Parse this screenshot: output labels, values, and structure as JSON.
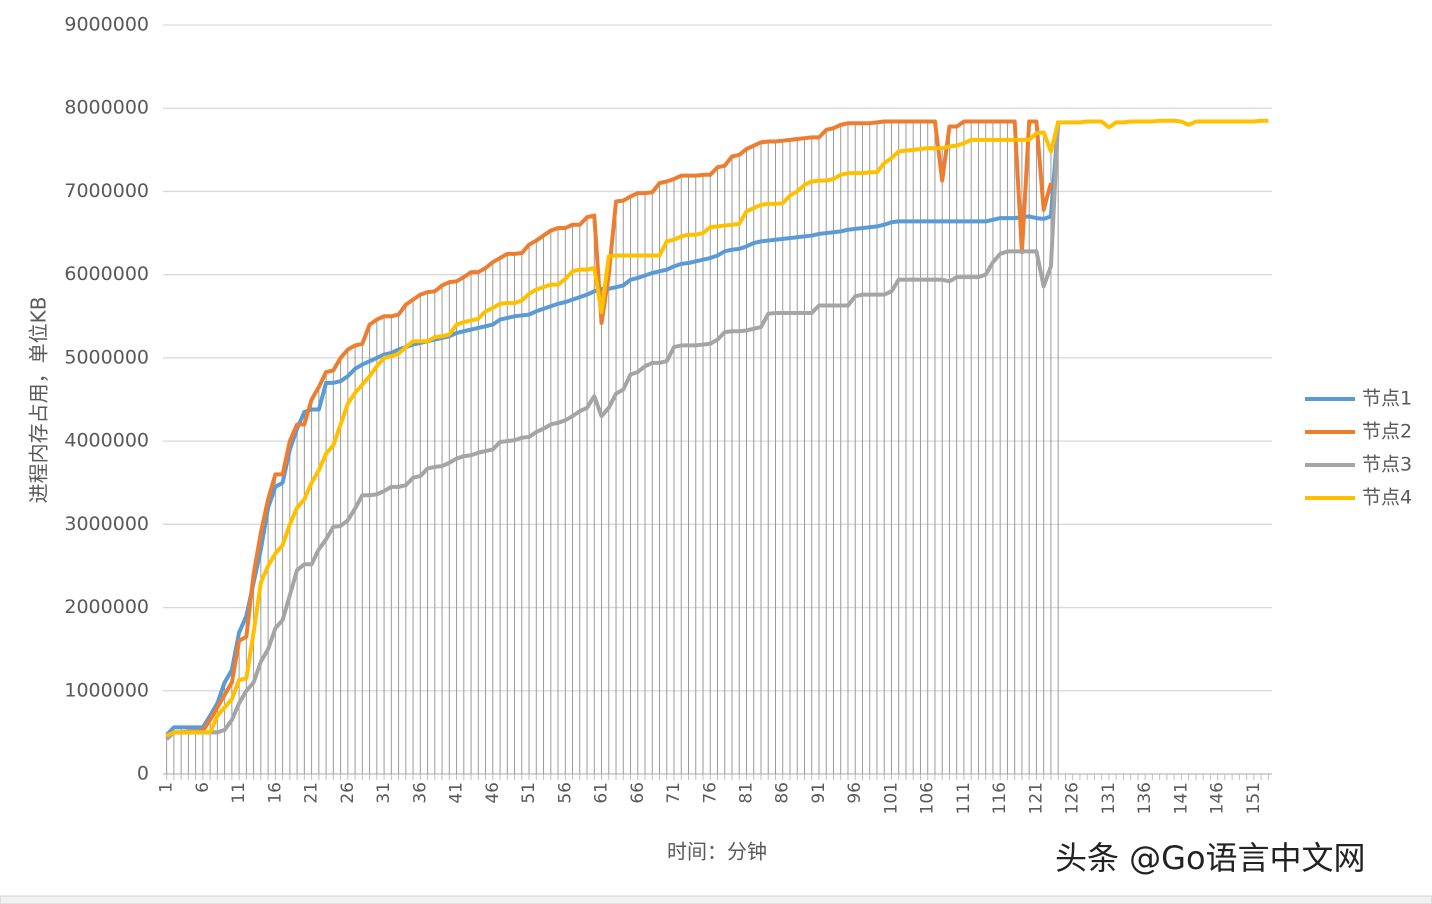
{
  "chart_data": {
    "type": "line",
    "y_label": "进程内存占用，单位KB",
    "x_label": "时间：分钟",
    "watermark": "头条 @Go语言中文网",
    "grid": true,
    "drop_lines": true,
    "legend": "right",
    "ylim": [
      0,
      9000000
    ],
    "yticks": [
      0,
      1000000,
      2000000,
      3000000,
      4000000,
      5000000,
      6000000,
      7000000,
      8000000,
      9000000
    ],
    "categories": [
      1,
      null,
      null,
      null,
      null,
      6,
      null,
      null,
      null,
      null,
      11,
      null,
      null,
      null,
      null,
      16,
      null,
      null,
      null,
      null,
      21,
      null,
      null,
      null,
      null,
      26,
      null,
      null,
      null,
      null,
      31,
      null,
      null,
      null,
      null,
      36,
      null,
      null,
      null,
      null,
      41,
      null,
      null,
      null,
      null,
      46,
      null,
      null,
      null,
      null,
      51,
      null,
      null,
      null,
      null,
      56,
      null,
      null,
      null,
      null,
      61,
      null,
      null,
      null,
      null,
      66,
      null,
      null,
      null,
      null,
      71,
      null,
      null,
      null,
      null,
      76,
      null,
      null,
      null,
      null,
      81,
      null,
      null,
      null,
      null,
      86,
      null,
      null,
      null,
      null,
      91,
      null,
      null,
      null,
      null,
      96,
      null,
      null,
      null,
      null,
      101,
      null,
      null,
      null,
      null,
      106,
      null,
      null,
      null,
      null,
      111,
      null,
      null,
      null,
      null,
      116,
      null,
      null,
      null,
      null,
      121,
      null,
      null,
      null,
      null,
      126,
      null,
      null,
      null,
      null,
      131,
      null,
      null,
      null,
      null,
      136,
      null,
      null,
      null,
      null,
      141,
      null,
      null,
      null,
      null,
      146,
      null,
      null,
      null,
      null,
      151,
      null,
      null
    ],
    "series": [
      {
        "name": "节点1",
        "color": "#5b9bd5",
        "values": [
          470000,
          560000,
          560000,
          560000,
          560000,
          560000,
          700000,
          850000,
          1100000,
          1250000,
          1700000,
          1900000,
          2300000,
          2700000,
          3200000,
          3450000,
          3500000,
          3900000,
          4150000,
          4350000,
          4380000,
          4380000,
          4700000,
          4700000,
          4720000,
          4780000,
          4870000,
          4920000,
          4960000,
          5000000,
          5040000,
          5060000,
          5100000,
          5130000,
          5160000,
          5180000,
          5200000,
          5220000,
          5240000,
          5260000,
          5300000,
          5320000,
          5340000,
          5360000,
          5380000,
          5400000,
          5460000,
          5480000,
          5500000,
          5510000,
          5520000,
          5560000,
          5590000,
          5620000,
          5650000,
          5670000,
          5700000,
          5730000,
          5760000,
          5800000,
          5830000,
          5830000,
          5850000,
          5870000,
          5940000,
          5960000,
          5990000,
          6020000,
          6040000,
          6060000,
          6100000,
          6130000,
          6140000,
          6160000,
          6180000,
          6200000,
          6230000,
          6280000,
          6300000,
          6310000,
          6340000,
          6380000,
          6400000,
          6410000,
          6420000,
          6430000,
          6440000,
          6450000,
          6460000,
          6470000,
          6490000,
          6500000,
          6510000,
          6520000,
          6540000,
          6550000,
          6560000,
          6570000,
          6580000,
          6600000,
          6630000,
          6640000,
          6640000,
          6640000,
          6640000,
          6640000,
          6640000,
          6640000,
          6640000,
          6640000,
          6640000,
          6640000,
          6640000,
          6640000,
          6660000,
          6680000,
          6680000,
          6680000,
          6690000,
          6700000,
          6680000,
          6670000,
          6700000,
          7830000,
          null,
          null,
          null,
          null,
          null,
          null,
          null,
          null,
          null,
          null,
          null,
          null,
          null,
          null,
          null,
          null,
          null,
          null,
          null,
          null,
          null,
          null,
          null,
          null,
          null,
          null,
          null,
          null,
          null
        ]
      },
      {
        "name": "节点2",
        "color": "#ed7d31",
        "values": [
          420000,
          500000,
          500000,
          510000,
          510000,
          520000,
          650000,
          800000,
          950000,
          1100000,
          1600000,
          1650000,
          2400000,
          2900000,
          3300000,
          3600000,
          3600000,
          4000000,
          4200000,
          4200000,
          4500000,
          4650000,
          4830000,
          4850000,
          5000000,
          5100000,
          5150000,
          5170000,
          5400000,
          5460000,
          5500000,
          5500000,
          5520000,
          5640000,
          5700000,
          5760000,
          5790000,
          5800000,
          5870000,
          5910000,
          5920000,
          5970000,
          6030000,
          6030000,
          6080000,
          6150000,
          6200000,
          6250000,
          6250000,
          6260000,
          6360000,
          6410000,
          6470000,
          6530000,
          6560000,
          6560000,
          6600000,
          6600000,
          6690000,
          6710000,
          5420000,
          6000000,
          6880000,
          6890000,
          6940000,
          6980000,
          6980000,
          6990000,
          7100000,
          7120000,
          7150000,
          7190000,
          7190000,
          7190000,
          7200000,
          7200000,
          7290000,
          7310000,
          7420000,
          7440000,
          7510000,
          7550000,
          7590000,
          7600000,
          7600000,
          7610000,
          7620000,
          7630000,
          7640000,
          7650000,
          7650000,
          7740000,
          7760000,
          7800000,
          7820000,
          7820000,
          7820000,
          7820000,
          7830000,
          7840000,
          7840000,
          7840000,
          7840000,
          7840000,
          7840000,
          7840000,
          7840000,
          7130000,
          7780000,
          7780000,
          7840000,
          7840000,
          7840000,
          7840000,
          7840000,
          7840000,
          7840000,
          7840000,
          6270000,
          7840000,
          7840000,
          6780000,
          7100000,
          null,
          null,
          null,
          null,
          null,
          null,
          null,
          null,
          null,
          null,
          null,
          null,
          null,
          null,
          null,
          null,
          null,
          null,
          null,
          null,
          null,
          null,
          null,
          null,
          null,
          null,
          null,
          null,
          null,
          null
        ]
      },
      {
        "name": "节点3",
        "color": "#a5a5a5",
        "values": [
          420000,
          500000,
          500000,
          500000,
          500000,
          500000,
          500000,
          500000,
          530000,
          650000,
          850000,
          1000000,
          1100000,
          1350000,
          1500000,
          1750000,
          1850000,
          2150000,
          2450000,
          2520000,
          2520000,
          2700000,
          2820000,
          2970000,
          2980000,
          3050000,
          3190000,
          3350000,
          3350000,
          3360000,
          3400000,
          3450000,
          3450000,
          3470000,
          3560000,
          3580000,
          3670000,
          3690000,
          3700000,
          3740000,
          3790000,
          3820000,
          3830000,
          3860000,
          3880000,
          3900000,
          3990000,
          4000000,
          4010000,
          4040000,
          4050000,
          4110000,
          4150000,
          4200000,
          4220000,
          4250000,
          4300000,
          4360000,
          4400000,
          4540000,
          4300000,
          4400000,
          4570000,
          4620000,
          4800000,
          4830000,
          4900000,
          4940000,
          4940000,
          4960000,
          5130000,
          5150000,
          5150000,
          5150000,
          5160000,
          5170000,
          5220000,
          5310000,
          5320000,
          5320000,
          5330000,
          5350000,
          5370000,
          5530000,
          5540000,
          5540000,
          5540000,
          5540000,
          5540000,
          5540000,
          5630000,
          5630000,
          5630000,
          5630000,
          5630000,
          5740000,
          5760000,
          5760000,
          5760000,
          5760000,
          5800000,
          5940000,
          5940000,
          5940000,
          5940000,
          5940000,
          5940000,
          5940000,
          5920000,
          5970000,
          5970000,
          5970000,
          5970000,
          6000000,
          6150000,
          6250000,
          6280000,
          6280000,
          6280000,
          6280000,
          6280000,
          5860000,
          6100000,
          7850000,
          null,
          null,
          null,
          null,
          null,
          null,
          null,
          null,
          null,
          null,
          null,
          null,
          null,
          null,
          null,
          null,
          null,
          null,
          null,
          null,
          null,
          null,
          null,
          null,
          null,
          null,
          null,
          null,
          null
        ]
      },
      {
        "name": "节点4",
        "color": "#ffc000",
        "values": [
          460000,
          500000,
          500000,
          500000,
          500000,
          500000,
          500000,
          700000,
          800000,
          900000,
          1130000,
          1150000,
          1700000,
          2300000,
          2500000,
          2650000,
          2750000,
          3000000,
          3200000,
          3300000,
          3500000,
          3650000,
          3850000,
          3950000,
          4200000,
          4450000,
          4580000,
          4680000,
          4780000,
          4900000,
          5000000,
          5020000,
          5050000,
          5130000,
          5200000,
          5200000,
          5200000,
          5250000,
          5260000,
          5280000,
          5400000,
          5430000,
          5450000,
          5470000,
          5560000,
          5600000,
          5650000,
          5660000,
          5660000,
          5690000,
          5770000,
          5820000,
          5850000,
          5880000,
          5880000,
          5950000,
          6040000,
          6060000,
          6060000,
          6080000,
          5550000,
          6220000,
          6230000,
          6230000,
          6230000,
          6230000,
          6230000,
          6230000,
          6230000,
          6400000,
          6420000,
          6460000,
          6480000,
          6480000,
          6500000,
          6570000,
          6580000,
          6590000,
          6600000,
          6610000,
          6760000,
          6800000,
          6840000,
          6850000,
          6850000,
          6860000,
          6950000,
          7000000,
          7080000,
          7120000,
          7130000,
          7130000,
          7150000,
          7200000,
          7220000,
          7220000,
          7220000,
          7230000,
          7230000,
          7340000,
          7400000,
          7480000,
          7490000,
          7500000,
          7510000,
          7520000,
          7520000,
          7520000,
          7540000,
          7550000,
          7580000,
          7620000,
          7620000,
          7620000,
          7620000,
          7620000,
          7620000,
          7620000,
          7620000,
          7620000,
          7700000,
          7710000,
          7480000,
          7830000,
          7830000,
          7830000,
          7830000,
          7840000,
          7840000,
          7840000,
          7770000,
          7830000,
          7830000,
          7840000,
          7840000,
          7840000,
          7840000,
          7850000,
          7850000,
          7850000,
          7840000,
          7800000,
          7840000,
          7840000,
          7840000,
          7840000,
          7840000,
          7840000,
          7840000,
          7840000,
          7840000,
          7850000,
          7850000
        ]
      }
    ]
  }
}
